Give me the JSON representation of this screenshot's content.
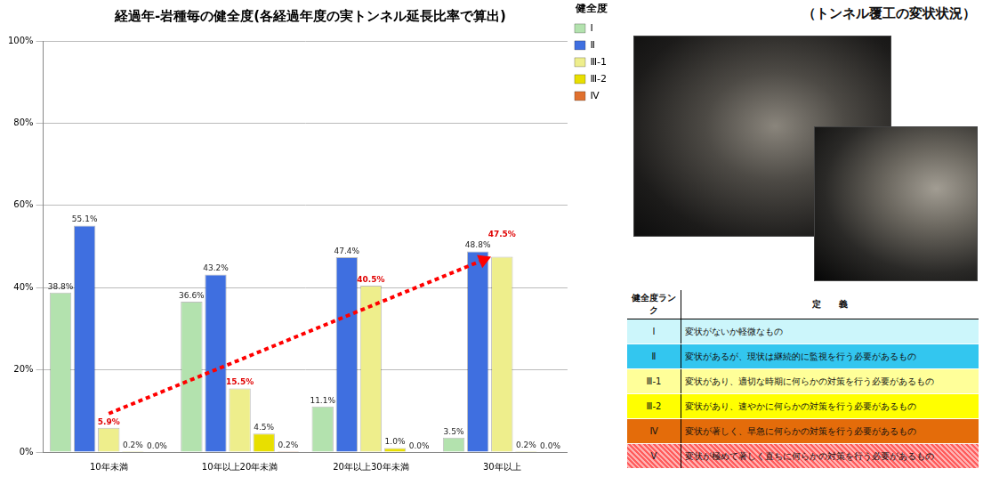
{
  "chart_data": {
    "type": "bar",
    "title": "経過年-岩種毎の健全度(各経過年度の実トンネル延長比率で算出)",
    "categories": [
      "10年未満",
      "10年以上20年未満",
      "20年以上30年未満",
      "30年以上"
    ],
    "series": [
      {
        "name": "Ⅰ",
        "color": "#b3e2ae",
        "values": [
          38.8,
          36.6,
          11.1,
          3.5
        ],
        "value_labels": [
          "38.8%",
          "36.6%",
          "11.1%",
          "3.5%"
        ]
      },
      {
        "name": "Ⅱ",
        "color": "#3f6fe0",
        "values": [
          55.1,
          43.2,
          47.4,
          48.8
        ],
        "value_labels": [
          "55.1%",
          "43.2%",
          "47.4%",
          "48.8%"
        ]
      },
      {
        "name": "Ⅲ-1",
        "color": "#eeee8c",
        "values": [
          5.9,
          15.5,
          40.5,
          47.5
        ],
        "value_labels": [
          "5.9%",
          "15.5%",
          "40.5%",
          "47.5%"
        ]
      },
      {
        "name": "Ⅲ-2",
        "color": "#e8df00",
        "values": [
          0.2,
          4.5,
          1.0,
          0.2
        ],
        "value_labels": [
          "0.2%",
          "4.5%",
          "1.0%",
          "0.2%"
        ]
      },
      {
        "name": "Ⅳ",
        "color": "#e0702e",
        "values": [
          0.0,
          0.2,
          0.0,
          0.0
        ],
        "value_labels": [
          "0.0%",
          "0.2%",
          "0.0%",
          "0.0%"
        ]
      }
    ],
    "ylim": [
      0,
      100
    ],
    "yticks": [
      {
        "value": 0,
        "label": "0%"
      },
      {
        "value": 20,
        "label": "20%"
      },
      {
        "value": 40,
        "label": "40%"
      },
      {
        "value": 60,
        "label": "60%"
      },
      {
        "value": 80,
        "label": "80%"
      },
      {
        "value": 100,
        "label": "100%"
      }
    ],
    "grid": true,
    "legend": "right",
    "legend_title": "健全度",
    "data_labels": true
  },
  "photo_caption": "（トンネル覆工の変状状況）",
  "table": {
    "header": [
      "健全度ランク",
      "定　　義"
    ],
    "rows": [
      [
        "Ⅰ",
        "変状がないか軽微なもの"
      ],
      [
        "Ⅱ",
        "変状があるが、現状は継続的に監視を行う必要があるもの"
      ],
      [
        "Ⅲ-1",
        "変状があり、適切な時期に何らかの対策を行う必要があるもの"
      ],
      [
        "Ⅲ-2",
        "変状があり、速やかに何らかの対策を行う必要があるもの"
      ],
      [
        "Ⅳ",
        "変状が著しく、早急に何らかの対策を行う必要があるもの"
      ],
      [
        "Ⅴ",
        "変状が極めて著しく直ちに何らかの対策を行う必要があるもの"
      ]
    ]
  }
}
